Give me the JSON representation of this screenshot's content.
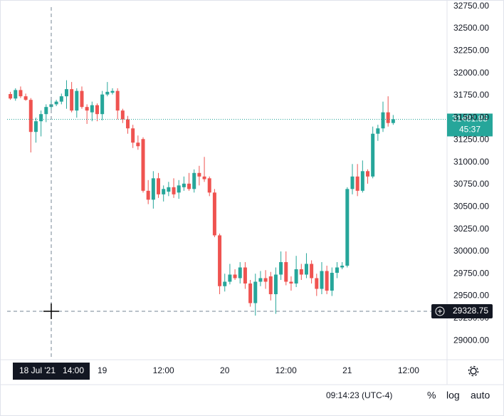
{
  "chart_data": {
    "type": "candlestick",
    "up_color": "#26a69a",
    "down_color": "#ef5350",
    "categories": [
      null,
      null,
      null,
      null,
      null,
      null,
      null,
      null,
      null,
      null,
      null,
      null,
      null,
      null,
      null,
      null,
      null,
      null,
      "19",
      null,
      null,
      null,
      null,
      null,
      null,
      null,
      null,
      null,
      null,
      null,
      "12:00",
      null,
      null,
      null,
      null,
      null,
      null,
      null,
      null,
      null,
      null,
      null,
      "20",
      null,
      null,
      null,
      null,
      null,
      null,
      null,
      null,
      null,
      null,
      null,
      "12:00",
      null,
      null,
      null,
      null,
      null,
      null,
      null,
      null,
      null,
      null,
      null,
      "21",
      null,
      null,
      null,
      null,
      null,
      null,
      null,
      null,
      null,
      null,
      null,
      "12:00",
      null,
      null,
      null,
      null,
      null,
      null,
      null,
      null
    ],
    "open": [
      31765,
      31715,
      31810,
      31740,
      31700,
      31340,
      31460,
      31540,
      31620,
      31650,
      31680,
      31740,
      31820,
      31580,
      31800,
      31620,
      31560,
      31640,
      31540,
      31760,
      31780,
      31800,
      31580,
      31480,
      31380,
      31220,
      31260,
      30680,
      30580,
      30820,
      30640,
      30670,
      30720,
      30660,
      30720,
      30760,
      30700,
      30880,
      30840,
      30820,
      30660,
      30180,
      29610,
      29660,
      29740,
      29700,
      29820,
      29640,
      29420,
      29660,
      29700,
      29720,
      29520,
      29740,
      29880,
      29660,
      29640,
      29800,
      29740,
      29860,
      29700,
      29580,
      29780,
      29560,
      29760,
      29820,
      29840,
      30700,
      30840,
      30680,
      30900,
      30840,
      31320,
      31380,
      31560,
      31440,
      null,
      null,
      null,
      null,
      null,
      null,
      null,
      null,
      null,
      null,
      null
    ],
    "high": [
      31790,
      31830,
      31850,
      31770,
      31720,
      31500,
      31580,
      31650,
      31700,
      31700,
      31770,
      31920,
      31900,
      31830,
      31850,
      31650,
      31680,
      31660,
      31800,
      31900,
      31830,
      31830,
      31600,
      31520,
      31420,
      31300,
      31280,
      30800,
      30900,
      30880,
      30740,
      30780,
      30820,
      30800,
      30840,
      30880,
      30920,
      30960,
      31060,
      30840,
      30700,
      30200,
      29750,
      29860,
      29800,
      29880,
      29880,
      29680,
      29750,
      29780,
      29790,
      29770,
      29820,
      30000,
      30000,
      29720,
      29950,
      29860,
      29980,
      29900,
      29750,
      29880,
      29840,
      29820,
      29880,
      29880,
      30720,
      30980,
      30980,
      31020,
      30920,
      31400,
      31420,
      31680,
      31740,
      31530,
      null,
      null,
      null,
      null,
      null,
      null,
      null,
      null,
      null,
      null,
      null
    ],
    "low": [
      31700,
      31690,
      31720,
      31690,
      31110,
      31220,
      31290,
      31450,
      31590,
      31630,
      31650,
      31600,
      31560,
      31500,
      31600,
      31430,
      31460,
      31460,
      31470,
      31740,
      31760,
      31480,
      31440,
      31320,
      31160,
      31140,
      30660,
      30530,
      30480,
      30600,
      30560,
      30620,
      30600,
      30590,
      30680,
      30680,
      30660,
      30740,
      30780,
      30620,
      30160,
      29520,
      29550,
      29630,
      29680,
      29640,
      29580,
      29380,
      29280,
      29610,
      29580,
      29450,
      29300,
      29680,
      29620,
      29560,
      29600,
      29680,
      29700,
      29640,
      29500,
      29520,
      29520,
      29500,
      29700,
      29800,
      29820,
      30640,
      30620,
      30660,
      30760,
      30820,
      31240,
      31340,
      31400,
      31420,
      null,
      null,
      null,
      null,
      null,
      null,
      null,
      null,
      null,
      null,
      null
    ],
    "close": [
      31715,
      31810,
      31740,
      31700,
      31340,
      31460,
      31540,
      31620,
      31650,
      31680,
      31740,
      31820,
      31580,
      31800,
      31620,
      31580,
      31640,
      31540,
      31760,
      31790,
      31800,
      31580,
      31480,
      31380,
      31220,
      31180,
      30680,
      30580,
      30820,
      30640,
      30700,
      30720,
      30640,
      30740,
      30760,
      30700,
      30880,
      30840,
      30810,
      30660,
      30180,
      29610,
      29660,
      29740,
      29700,
      29820,
      29640,
      29420,
      29660,
      29700,
      29660,
      29520,
      29740,
      29880,
      29660,
      29640,
      29800,
      29740,
      29860,
      29700,
      29580,
      29780,
      29560,
      29760,
      29820,
      29840,
      30700,
      30840,
      30680,
      30900,
      30840,
      31320,
      31380,
      31560,
      31440,
      31481.85,
      null,
      null,
      null,
      null,
      null,
      null,
      null,
      null,
      null,
      null,
      null
    ],
    "ylim": [
      28785,
      32740
    ],
    "yticks": [
      {
        "value": 29000,
        "label": "29000.00"
      },
      {
        "value": 29250,
        "label": "29250.00"
      },
      {
        "value": 29500,
        "label": "29500.00"
      },
      {
        "value": 29750,
        "label": "29750.00"
      },
      {
        "value": 30000,
        "label": "30000.00"
      },
      {
        "value": 30250,
        "label": "30250.00"
      },
      {
        "value": 30500,
        "label": "30500.00"
      },
      {
        "value": 30750,
        "label": "30750.00"
      },
      {
        "value": 31000,
        "label": "31000.00"
      },
      {
        "value": 31250,
        "label": "31250.00"
      },
      {
        "value": 31500,
        "label": "31500.00"
      },
      {
        "value": 31750,
        "label": "31750.00"
      },
      {
        "value": 32000,
        "label": "32000.00"
      },
      {
        "value": 32250,
        "label": "32250.00"
      },
      {
        "value": 32500,
        "label": "32500.00"
      },
      {
        "value": 32750,
        "label": "32750.00"
      }
    ],
    "countdown": "45:37",
    "crosshair": {
      "date": "18 Jul '21",
      "time": "14:00",
      "price": 29328.75
    },
    "toolbar": {
      "clock": "09:14:23 (UTC-4)",
      "percent": "%",
      "log": "log",
      "auto": "auto"
    }
  }
}
